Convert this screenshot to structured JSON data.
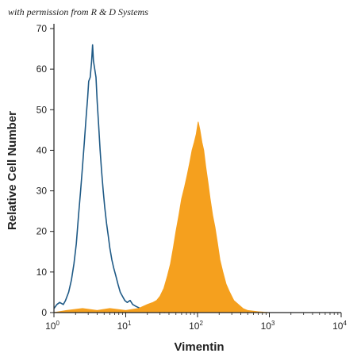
{
  "permission_note": "with permission from R & D Systems",
  "colors": {
    "control_line": "#1f5a86",
    "vimentin_fill": "#f5a01e",
    "axis": "#222222"
  },
  "chart_data": {
    "type": "area",
    "title": "",
    "xlabel": "Vimentin",
    "ylabel": "Relative Cell Number",
    "xscale": "log",
    "xlim": [
      1,
      10000
    ],
    "ylim": [
      0,
      70
    ],
    "xticks": [
      {
        "value": 1,
        "base": "10",
        "exp": "0"
      },
      {
        "value": 10,
        "base": "10",
        "exp": "1"
      },
      {
        "value": 100,
        "base": "10",
        "exp": "2"
      },
      {
        "value": 1000,
        "base": "10",
        "exp": "3"
      },
      {
        "value": 10000,
        "base": "10",
        "exp": "4"
      }
    ],
    "yticks": [
      0,
      10,
      20,
      30,
      40,
      50,
      60,
      70
    ],
    "grid": false,
    "legend": "none",
    "series": [
      {
        "style": "outline",
        "points": [
          [
            1.0,
            1
          ],
          [
            1.1,
            2
          ],
          [
            1.2,
            2.5
          ],
          [
            1.35,
            2
          ],
          [
            1.45,
            3
          ],
          [
            1.6,
            5
          ],
          [
            1.75,
            8
          ],
          [
            1.9,
            12
          ],
          [
            2.05,
            17
          ],
          [
            2.2,
            24
          ],
          [
            2.35,
            30
          ],
          [
            2.5,
            36
          ],
          [
            2.65,
            42
          ],
          [
            2.8,
            48
          ],
          [
            2.95,
            53
          ],
          [
            3.05,
            57
          ],
          [
            3.2,
            58
          ],
          [
            3.35,
            62
          ],
          [
            3.45,
            66
          ],
          [
            3.55,
            62
          ],
          [
            3.7,
            60
          ],
          [
            3.85,
            58
          ],
          [
            4.0,
            52
          ],
          [
            4.2,
            46
          ],
          [
            4.4,
            40
          ],
          [
            4.6,
            35
          ],
          [
            4.85,
            30
          ],
          [
            5.1,
            26
          ],
          [
            5.4,
            22
          ],
          [
            5.7,
            19
          ],
          [
            6.0,
            16
          ],
          [
            6.4,
            13
          ],
          [
            6.8,
            11
          ],
          [
            7.3,
            9
          ],
          [
            7.8,
            7
          ],
          [
            8.4,
            5
          ],
          [
            9.0,
            4
          ],
          [
            9.7,
            3
          ],
          [
            10.5,
            2.5
          ],
          [
            11.5,
            3
          ],
          [
            12.5,
            2
          ],
          [
            14,
            1.5
          ],
          [
            16,
            1
          ],
          [
            18,
            1.5
          ],
          [
            20,
            1
          ],
          [
            24,
            0.5
          ],
          [
            28,
            0.3
          ],
          [
            35,
            0
          ]
        ]
      },
      {
        "style": "filled",
        "points": [
          [
            1.0,
            0
          ],
          [
            1.5,
            0.5
          ],
          [
            2.5,
            1
          ],
          [
            4,
            0.5
          ],
          [
            6,
            1
          ],
          [
            10,
            0.5
          ],
          [
            15,
            1
          ],
          [
            20,
            2
          ],
          [
            24,
            2.5
          ],
          [
            27,
            3
          ],
          [
            30,
            4
          ],
          [
            34,
            6
          ],
          [
            38,
            9
          ],
          [
            42,
            12
          ],
          [
            46,
            16
          ],
          [
            50,
            20
          ],
          [
            55,
            24
          ],
          [
            60,
            28
          ],
          [
            66,
            31
          ],
          [
            72,
            34
          ],
          [
            78,
            37
          ],
          [
            84,
            40
          ],
          [
            90,
            42
          ],
          [
            96,
            44
          ],
          [
            102,
            47
          ],
          [
            108,
            45
          ],
          [
            115,
            42
          ],
          [
            122,
            40
          ],
          [
            130,
            36
          ],
          [
            140,
            32
          ],
          [
            150,
            28
          ],
          [
            162,
            24
          ],
          [
            175,
            21
          ],
          [
            190,
            17
          ],
          [
            205,
            13
          ],
          [
            225,
            10
          ],
          [
            250,
            7
          ],
          [
            280,
            5
          ],
          [
            320,
            3
          ],
          [
            370,
            2
          ],
          [
            430,
            1
          ],
          [
            500,
            0.5
          ],
          [
            700,
            0.2
          ],
          [
            1000,
            0
          ],
          [
            10000,
            0
          ]
        ]
      }
    ]
  }
}
